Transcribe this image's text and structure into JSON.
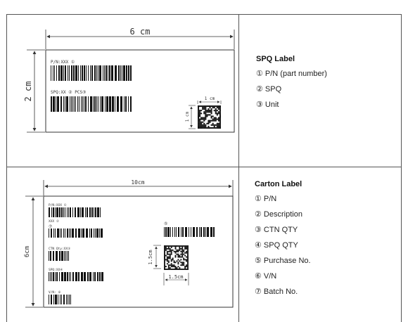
{
  "spq": {
    "title": "SPQ Label",
    "items": [
      "① P/N (part number)",
      "② SPQ",
      "③ Unit"
    ],
    "width_dim": "6 cm",
    "height_dim": "2 cm",
    "code_w_dim": "1 cm",
    "code_h_dim": "1 cm",
    "pn_text": "P/N:XXX ①",
    "spq_text": "SPQ:XX ② PCS③"
  },
  "carton": {
    "title": "Carton Label",
    "items": [
      "① P/N",
      "② Description",
      "③ CTN QTY",
      "④ SPQ QTY",
      "⑤ Purchase No.",
      "⑥ V/N",
      "⑦ Batch No."
    ],
    "width_dim": "10cm",
    "height_dim": "6cm",
    "code_w_dim": "1.5cm",
    "code_h_dim": "1.5cm",
    "pn_text": "P/N:XXX ①",
    "desc_text": "XXX ②",
    "circ7": "⑦",
    "circ5": "⑤",
    "ctn_text": "CTN Qty:XX③",
    "spq_text": "SPQ:XX④",
    "vn_text": "V/N: ⑥"
  }
}
